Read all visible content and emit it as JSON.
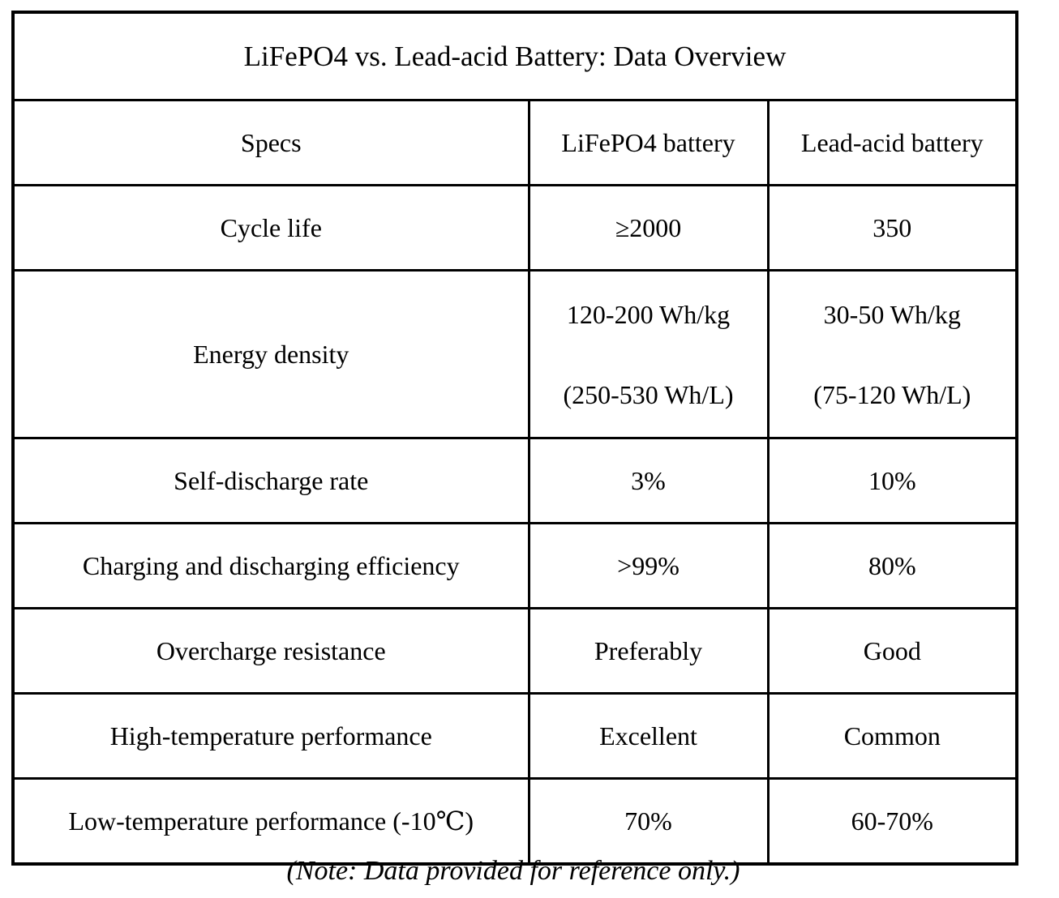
{
  "table": {
    "title": "LiFePO4 vs. Lead-acid Battery: Data Overview",
    "columns": [
      "Specs",
      "LiFePO4 battery",
      "Lead-acid battery"
    ],
    "rows": [
      {
        "spec": "Cycle life",
        "lifepo4": [
          "≥2000"
        ],
        "lead_acid": [
          "350"
        ]
      },
      {
        "spec": "Energy density",
        "lifepo4": [
          "120-200 Wh/kg",
          "(250-530 Wh/L)"
        ],
        "lead_acid": [
          "30-50 Wh/kg",
          "(75-120 Wh/L)"
        ]
      },
      {
        "spec": "Self-discharge rate",
        "lifepo4": [
          "3%"
        ],
        "lead_acid": [
          "10%"
        ]
      },
      {
        "spec": "Charging and discharging efficiency",
        "lifepo4": [
          ">99%"
        ],
        "lead_acid": [
          "80%"
        ]
      },
      {
        "spec": "Overcharge resistance",
        "lifepo4": [
          "Preferably"
        ],
        "lead_acid": [
          "Good"
        ]
      },
      {
        "spec": "High-temperature performance",
        "lifepo4": [
          "Excellent"
        ],
        "lead_acid": [
          "Common"
        ]
      },
      {
        "spec": "Low-temperature performance (-10℃)",
        "lifepo4": [
          "70%"
        ],
        "lead_acid": [
          "60-70%"
        ]
      }
    ],
    "note": "(Note: Data provided for reference only.)",
    "colors": {
      "border": "#000000",
      "text": "#000000",
      "background": "#ffffff"
    }
  }
}
